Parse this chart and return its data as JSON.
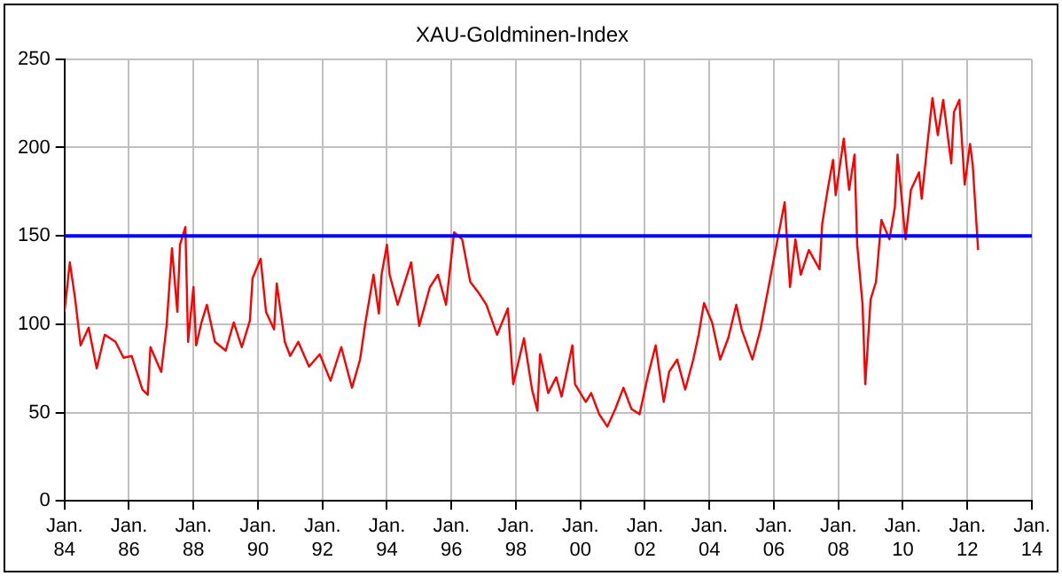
{
  "chart_data": {
    "type": "line",
    "title": "XAU-Goldminen-Index",
    "series": [
      {
        "color": "#ff0000",
        "x": [
          "1984-01",
          "1984-03",
          "1984-05",
          "1984-07",
          "1984-10",
          "1985-01",
          "1985-04",
          "1985-08",
          "1985-11",
          "1986-02",
          "1986-06",
          "1986-08",
          "1986-09",
          "1987-01",
          "1987-03",
          "1987-05",
          "1987-07",
          "1987-08",
          "1987-10",
          "1987-11",
          "1988-01",
          "1988-02",
          "1988-04",
          "1988-06",
          "1988-09",
          "1989-01",
          "1989-04",
          "1989-07",
          "1989-10",
          "1989-11",
          "1990-02",
          "1990-04",
          "1990-07",
          "1990-08",
          "1990-11",
          "1991-01",
          "1991-04",
          "1991-08",
          "1991-12",
          "1992-04",
          "1992-08",
          "1992-12",
          "1993-03",
          "1993-05",
          "1993-08",
          "1993-10",
          "1993-11",
          "1994-01",
          "1994-02",
          "1994-05",
          "1994-10",
          "1995-01",
          "1995-05",
          "1995-08",
          "1995-11",
          "1996-02",
          "1996-05",
          "1996-08",
          "1996-11",
          "1997-02",
          "1997-06",
          "1997-10",
          "1997-12",
          "1998-04",
          "1998-07",
          "1998-09",
          "1998-10",
          "1999-01",
          "1999-04",
          "1999-06",
          "1999-10",
          "1999-11",
          "2000-03",
          "2000-05",
          "2000-08",
          "2000-11",
          "2001-02",
          "2001-05",
          "2001-08",
          "2001-11",
          "2002-02",
          "2002-05",
          "2002-08",
          "2002-10",
          "2003-01",
          "2003-04",
          "2003-07",
          "2003-09",
          "2003-11",
          "2004-02",
          "2004-05",
          "2004-08",
          "2004-11",
          "2005-01",
          "2005-05",
          "2005-08",
          "2005-11",
          "2006-02",
          "2006-05",
          "2006-07",
          "2006-09",
          "2006-11",
          "2007-02",
          "2007-06",
          "2007-07",
          "2007-09",
          "2007-11",
          "2007-12",
          "2008-03",
          "2008-05",
          "2008-07",
          "2008-08",
          "2008-10",
          "2008-11",
          "2009-01",
          "2009-03",
          "2009-05",
          "2009-08",
          "2009-10",
          "2009-11",
          "2010-02",
          "2010-04",
          "2010-07",
          "2010-08",
          "2010-10",
          "2010-12",
          "2011-02",
          "2011-04",
          "2011-07",
          "2011-08",
          "2011-10",
          "2011-12",
          "2012-02",
          "2012-03",
          "2012-04",
          "2012-05"
        ],
        "values": [
          107,
          135,
          114,
          88,
          98,
          75,
          94,
          90,
          81,
          82,
          63,
          60,
          87,
          73,
          99,
          143,
          107,
          145,
          155,
          90,
          121,
          88,
          101,
          111,
          90,
          85,
          101,
          87,
          102,
          126,
          137,
          107,
          97,
          123,
          90,
          82,
          90,
          76,
          83,
          68,
          87,
          64,
          80,
          101,
          128,
          106,
          128,
          145,
          128,
          111,
          135,
          99,
          121,
          128,
          111,
          152,
          148,
          124,
          118,
          111,
          94,
          109,
          66,
          92,
          63,
          51,
          83,
          61,
          70,
          59,
          88,
          66,
          56,
          61,
          49,
          42,
          52,
          64,
          52,
          49,
          70,
          88,
          56,
          73,
          80,
          63,
          80,
          94,
          112,
          101,
          80,
          92,
          111,
          97,
          80,
          97,
          121,
          145,
          169,
          121,
          148,
          128,
          142,
          131,
          157,
          176,
          193,
          173,
          205,
          176,
          196,
          145,
          111,
          66,
          114,
          124,
          159,
          148,
          166,
          196,
          148,
          176,
          186,
          171,
          200,
          228,
          207,
          227,
          191,
          220,
          227,
          179,
          202,
          190,
          166,
          142
        ]
      }
    ],
    "xlim": [
      "1984-01",
      "2014-01"
    ],
    "xticks": [
      {
        "value": "1984-01",
        "label": "Jan. 84"
      },
      {
        "value": "1986-01",
        "label": "Jan. 86"
      },
      {
        "value": "1988-01",
        "label": "Jan. 88"
      },
      {
        "value": "1990-01",
        "label": "Jan. 90"
      },
      {
        "value": "1992-01",
        "label": "Jan. 92"
      },
      {
        "value": "1994-01",
        "label": "Jan. 94"
      },
      {
        "value": "1996-01",
        "label": "Jan. 96"
      },
      {
        "value": "1998-01",
        "label": "Jan. 98"
      },
      {
        "value": "2000-01",
        "label": "Jan. 00"
      },
      {
        "value": "2002-01",
        "label": "Jan. 02"
      },
      {
        "value": "2004-01",
        "label": "Jan. 04"
      },
      {
        "value": "2006-01",
        "label": "Jan. 06"
      },
      {
        "value": "2008-01",
        "label": "Jan. 08"
      },
      {
        "value": "2010-01",
        "label": "Jan. 10"
      },
      {
        "value": "2012-01",
        "label": "Jan. 12"
      },
      {
        "value": "2014-01",
        "label": "Jan. 14"
      }
    ],
    "ylim": [
      0,
      250
    ],
    "yticks": [
      0,
      50,
      100,
      150,
      200,
      250
    ],
    "ref_lines": [
      {
        "axis": "y",
        "value": 150,
        "color": "#0000ff"
      }
    ],
    "grid": true,
    "legend": false,
    "marker": "none",
    "line_style": "solid"
  }
}
